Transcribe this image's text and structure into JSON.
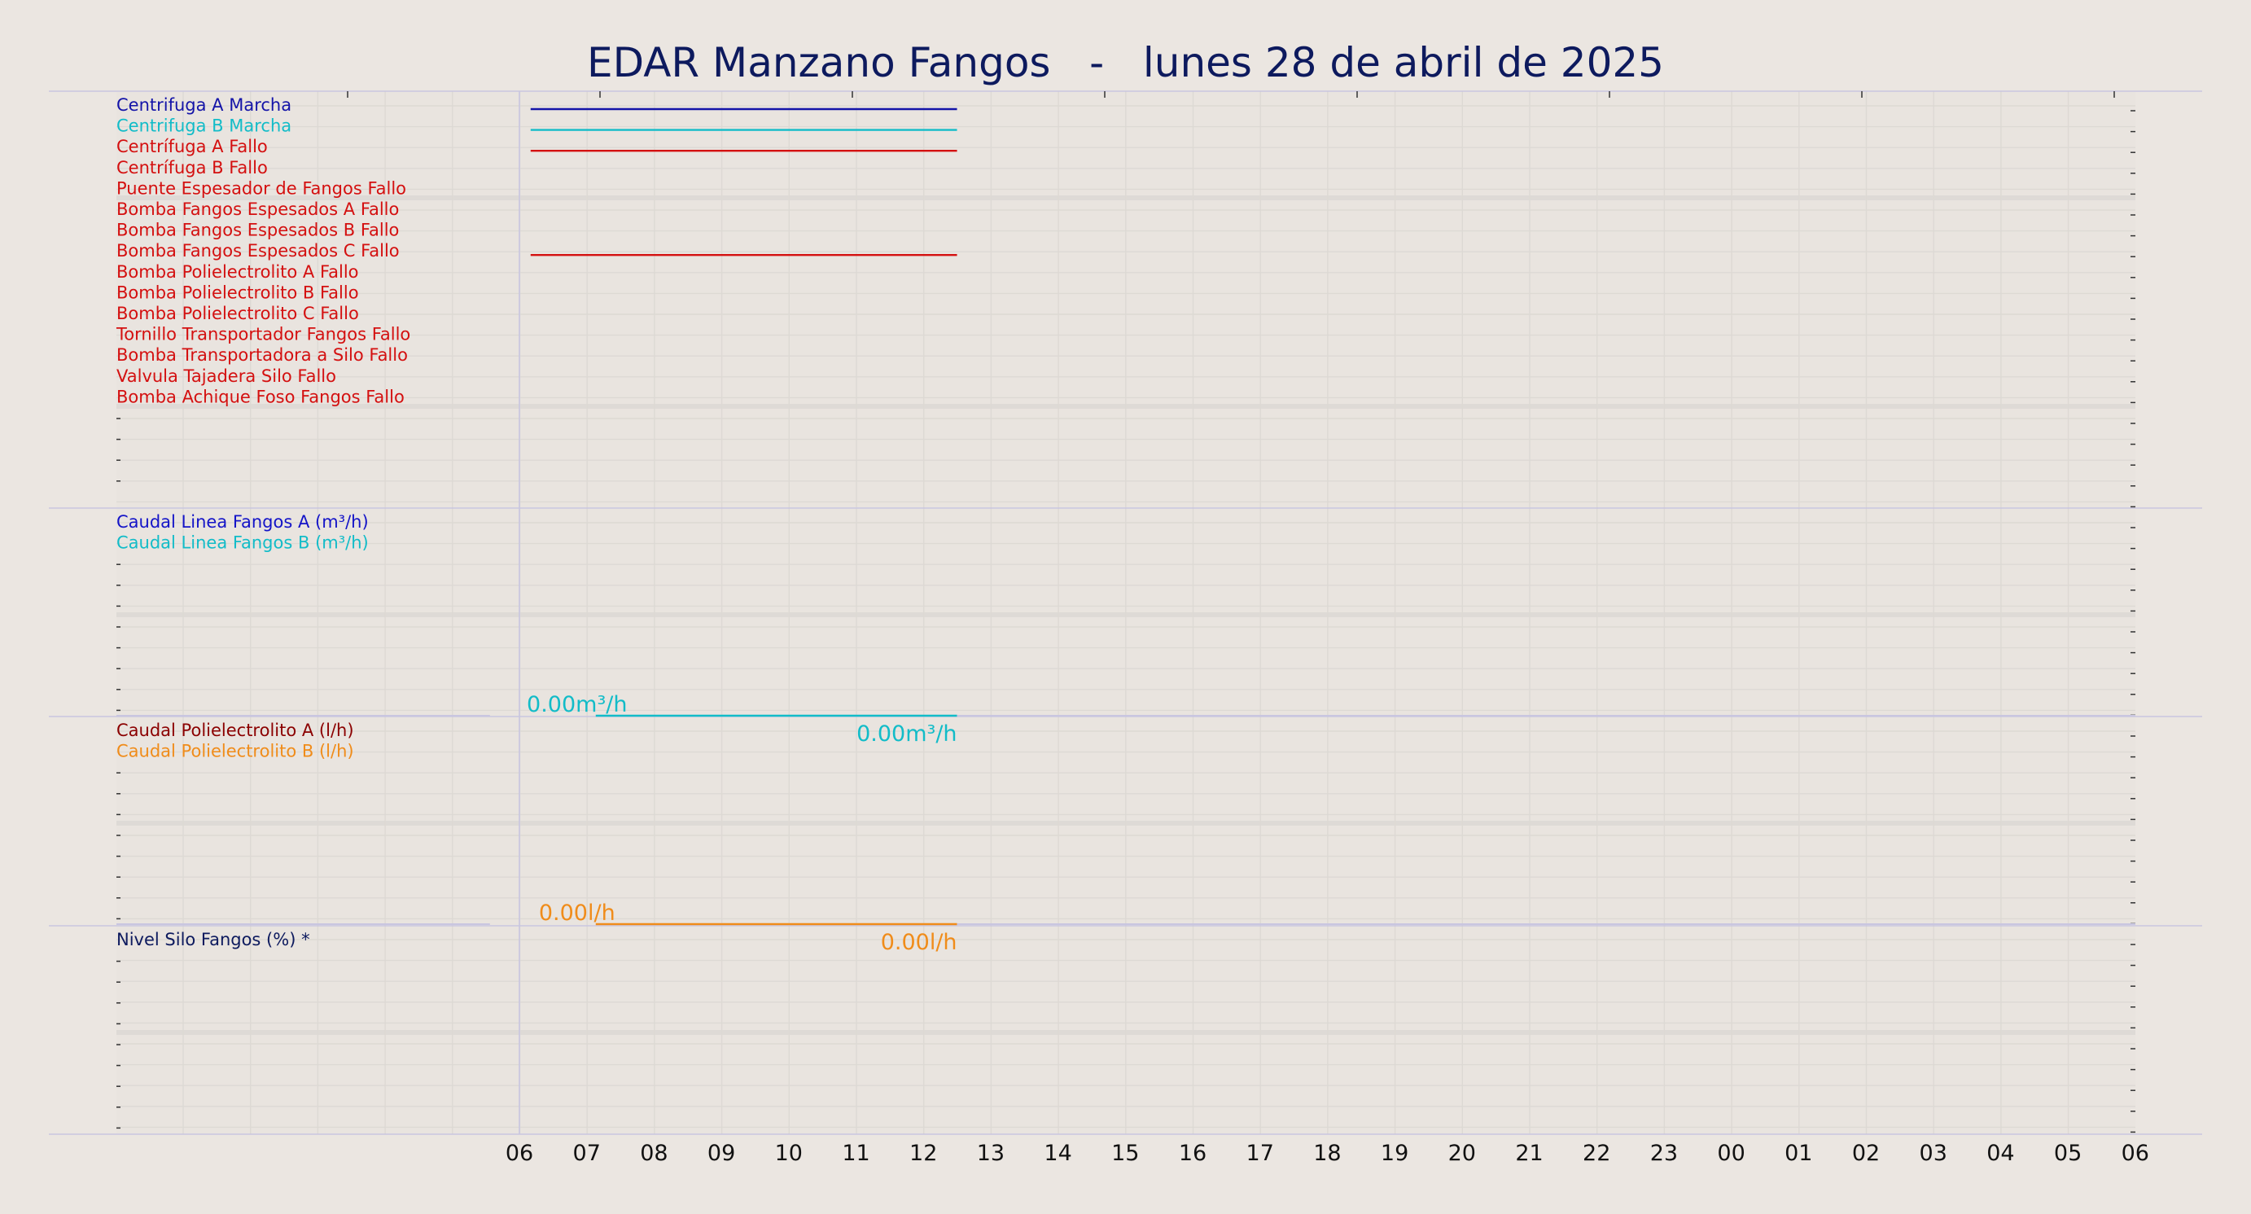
{
  "title": "EDAR Manzano Fangos   -   lunes 28 de abril de 2025",
  "colors": {
    "background": "#ebe6e1",
    "plot_bg": "#e9e4df",
    "title": "#0d1a5e",
    "axis_line": "#c9c6e0",
    "grid": "#ddd9d4",
    "band": "#dedad6"
  },
  "chart_data": {
    "type": "line",
    "x_ticks": [
      "06",
      "07",
      "08",
      "09",
      "10",
      "11",
      "12",
      "13",
      "14",
      "15",
      "16",
      "17",
      "18",
      "19",
      "20",
      "21",
      "22",
      "23",
      "00",
      "01",
      "02",
      "03",
      "04",
      "05",
      "06"
    ],
    "panels": [
      {
        "name": "estados",
        "series": [
          {
            "label": "Centrifuga A Marcha",
            "color": "#1414a8",
            "on": [
              [
                "06:10",
                "12:30"
              ]
            ]
          },
          {
            "label": "Centrifuga B Marcha",
            "color": "#12bcc8",
            "on": [
              [
                "06:10",
                "12:30"
              ]
            ]
          },
          {
            "label": "Centrífuga A Fallo",
            "color": "#d41010",
            "on": [
              [
                "06:10",
                "12:30"
              ]
            ]
          },
          {
            "label": "Centrífuga B Fallo",
            "color": "#d41010",
            "on": []
          },
          {
            "label": "Puente Espesador de Fangos Fallo",
            "color": "#d41010",
            "on": []
          },
          {
            "label": "Bomba Fangos Espesados A Fallo",
            "color": "#d41010",
            "on": []
          },
          {
            "label": "Bomba Fangos Espesados B Fallo",
            "color": "#d41010",
            "on": []
          },
          {
            "label": "Bomba Fangos Espesados C Fallo",
            "color": "#d41010",
            "on": [
              [
                "06:10",
                "12:30"
              ]
            ]
          },
          {
            "label": "Bomba Polielectrolito A Fallo",
            "color": "#d41010",
            "on": []
          },
          {
            "label": "Bomba Polielectrolito B Fallo",
            "color": "#d41010",
            "on": []
          },
          {
            "label": "Bomba Polielectrolito C Fallo",
            "color": "#d41010",
            "on": []
          },
          {
            "label": "Tornillo Transportador Fangos Fallo",
            "color": "#d41010",
            "on": []
          },
          {
            "label": "Bomba Transportadora a Silo Fallo",
            "color": "#d41010",
            "on": []
          },
          {
            "label": "Valvula Tajadera Silo Fallo",
            "color": "#d41010",
            "on": []
          },
          {
            "label": "Bomba Achique Foso Fangos Fallo",
            "color": "#d41010",
            "on": []
          }
        ]
      },
      {
        "name": "caudal_fangos",
        "series": [
          {
            "label": "Caudal Linea Fangos A (m³/h)",
            "color": "#1414c8",
            "start": "06:10",
            "end": "12:30",
            "value": 0
          },
          {
            "label": "Caudal Linea Fangos B (m³/h)",
            "color": "#12bcc8",
            "start": "06:10",
            "end": "12:30",
            "value": 0
          }
        ],
        "annotations": [
          "0.00m³/h",
          "0.00m³/h"
        ]
      },
      {
        "name": "caudal_polielectrolito",
        "series": [
          {
            "label": "Caudal Polielectrolito A (l/h)",
            "color": "#8b0000",
            "start": "06:10",
            "end": "12:30",
            "value": 0
          },
          {
            "label": "Caudal Polielectrolito B (l/h)",
            "color": "#f08c1a",
            "start": "06:10",
            "end": "12:30",
            "value": 0
          }
        ],
        "annotations": [
          "0.00l/h",
          "0.00l/h"
        ]
      },
      {
        "name": "nivel_silo",
        "series": [
          {
            "label": "Nivel Silo Fangos (%) *",
            "color": "#0d1a5e"
          }
        ]
      }
    ]
  }
}
